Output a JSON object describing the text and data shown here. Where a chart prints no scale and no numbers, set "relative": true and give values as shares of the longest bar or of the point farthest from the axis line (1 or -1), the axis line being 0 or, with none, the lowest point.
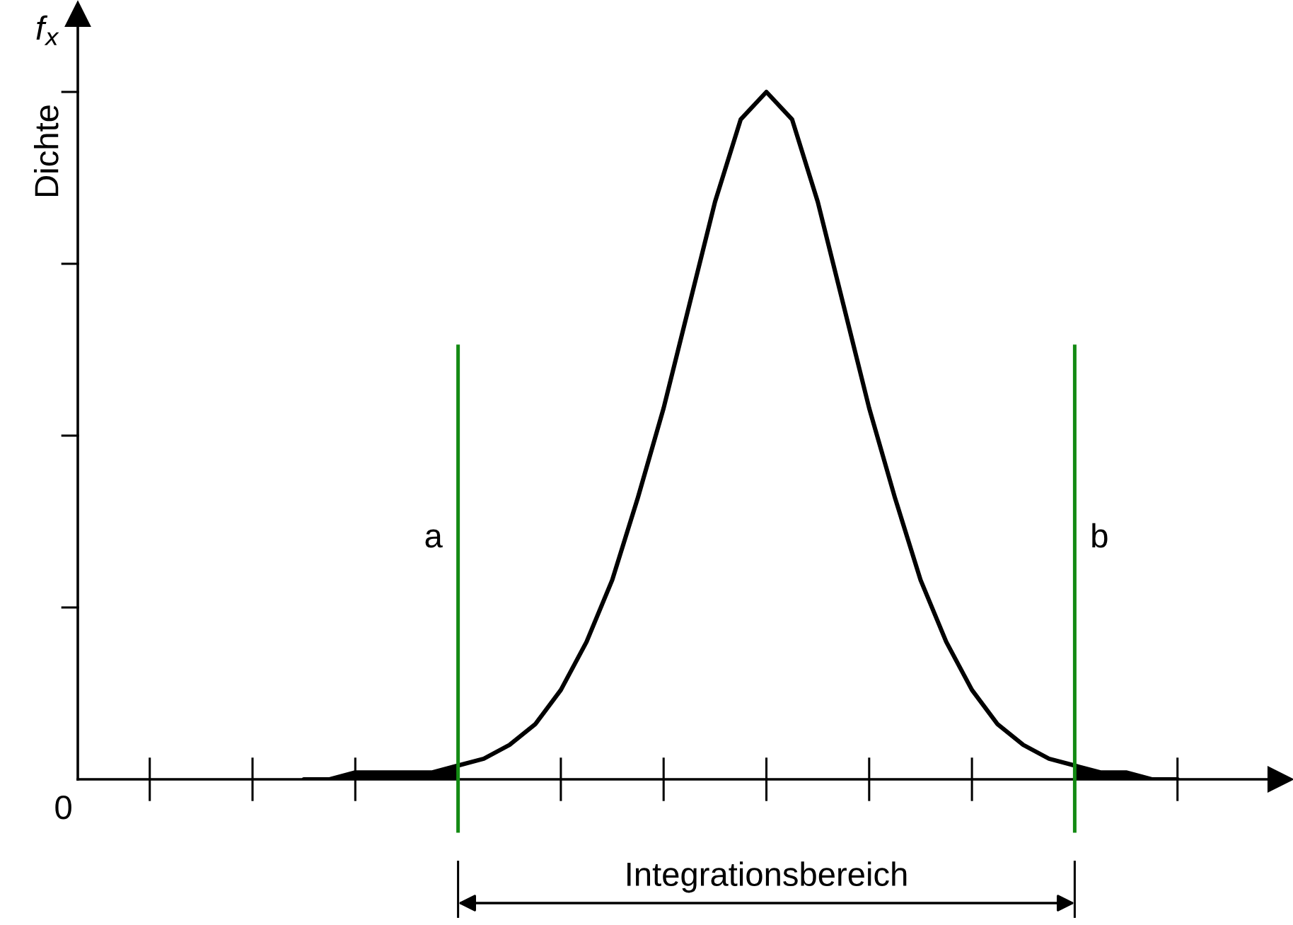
{
  "chart_data": {
    "type": "line",
    "relative": true,
    "annotations": [
      "f$_{x}$",
      "Integrationsbereich",
      "0",
      "Dichte"
    ],
    "categories": [
      null,
      null,
      null,
      null,
      null,
      null,
      null,
      null,
      null,
      null,
      null,
      null,
      null,
      null,
      null,
      null,
      null,
      null,
      null,
      null,
      null,
      null,
      null,
      null,
      null,
      null,
      null,
      null,
      null,
      null,
      null,
      null,
      null,
      null,
      null
    ],
    "series": [
      {
        "color": "#000000",
        "values": [
          0.0,
          0.0,
          0.01,
          0.01,
          0.01,
          0.01,
          0.02,
          0.03,
          0.05,
          0.08,
          0.13,
          0.2,
          0.29,
          0.41,
          0.54,
          0.69,
          0.84,
          0.96,
          1.0,
          0.96,
          0.84,
          0.69,
          0.54,
          0.41,
          0.29,
          0.2,
          0.13,
          0.08,
          0.05,
          0.03,
          0.02,
          0.01,
          0.01,
          0.0,
          0.0
        ]
      },
      {
        "type": "area",
        "color": "#000000",
        "values": [
          0.0,
          0.0,
          0.01,
          0.01,
          0.01,
          0.01,
          0.02,
          null,
          null,
          null,
          null,
          null,
          null,
          null,
          null,
          null,
          null,
          null,
          null,
          null,
          null,
          null,
          null,
          null,
          null,
          null,
          null,
          null,
          null,
          null,
          null,
          null,
          null,
          null,
          null
        ]
      },
      {
        "type": "area",
        "color": "#000000",
        "values": [
          null,
          null,
          null,
          null,
          null,
          null,
          null,
          null,
          null,
          null,
          null,
          null,
          null,
          null,
          null,
          null,
          null,
          null,
          null,
          null,
          null,
          null,
          null,
          null,
          null,
          null,
          null,
          null,
          null,
          null,
          0.02,
          0.01,
          0.01,
          0.0,
          0.0
        ]
      }
    ],
    "ref_lines": [
      {
        "axis": "x",
        "label": "a",
        "color": "#138a13"
      },
      {
        "axis": "x",
        "label": "b",
        "color": "#138a13"
      }
    ]
  }
}
